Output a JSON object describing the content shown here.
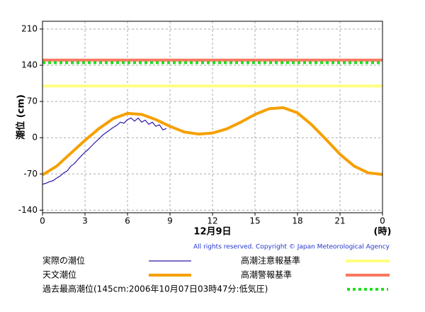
{
  "chart_data": {
    "type": "line",
    "ylabel": "潮位 (cm)",
    "xlabel": "12月9日",
    "xunit": "(時)",
    "copyright": "All rights reserved. Copyright © Japan Meteorological Agency",
    "xlim": [
      0,
      24
    ],
    "xticks": [
      0,
      3,
      6,
      9,
      12,
      15,
      18,
      21,
      {
        "value": 24,
        "label": "0"
      }
    ],
    "ylim": [
      -145,
      225
    ],
    "yticks": [
      -140,
      -70,
      0,
      70,
      140,
      210
    ],
    "grid": true,
    "series": [
      {
        "name": "実際の潮位",
        "color": "#2a1aa8",
        "line_width": 1.2,
        "x": [
          0,
          0.25,
          0.5,
          0.75,
          1,
          1.25,
          1.5,
          1.75,
          2,
          2.25,
          2.5,
          2.75,
          3,
          3.25,
          3.5,
          3.75,
          4,
          4.25,
          4.5,
          4.75,
          5,
          5.25,
          5.5,
          5.75,
          6,
          6.25,
          6.5,
          6.75,
          7,
          7.25,
          7.5,
          7.75,
          8,
          8.25,
          8.5,
          8.75
        ],
        "values": [
          -90,
          -88,
          -85,
          -83,
          -78,
          -74,
          -68,
          -64,
          -55,
          -50,
          -42,
          -35,
          -28,
          -22,
          -15,
          -8,
          -2,
          5,
          10,
          15,
          20,
          24,
          30,
          28,
          35,
          38,
          32,
          38,
          30,
          34,
          26,
          30,
          22,
          25,
          15,
          18
        ]
      },
      {
        "name": "天文潮位",
        "color": "#f5a000",
        "line_width": 4,
        "x": [
          0,
          1,
          2,
          3,
          4,
          5,
          6,
          7,
          8,
          9,
          10,
          11,
          12,
          13,
          14,
          15,
          16,
          17,
          18,
          19,
          20,
          21,
          22,
          23,
          24
        ],
        "values": [
          -72,
          -55,
          -30,
          -5,
          18,
          37,
          47,
          45,
          35,
          22,
          11,
          7,
          9,
          17,
          30,
          45,
          56,
          58,
          48,
          25,
          -3,
          -32,
          -55,
          -68,
          -71
        ]
      }
    ],
    "reference_lines": [
      {
        "name": "高潮注意報基準",
        "value": 100,
        "color": "#ffff80",
        "style": "solid"
      },
      {
        "name": "高潮警報基準",
        "value": 150,
        "color": "#f87860",
        "style": "solid"
      },
      {
        "name": "過去最高潮位(145cm:2006年10月07日03時47分:低気圧)",
        "value": 145,
        "color": "#22dd22",
        "style": "dotted"
      }
    ]
  }
}
